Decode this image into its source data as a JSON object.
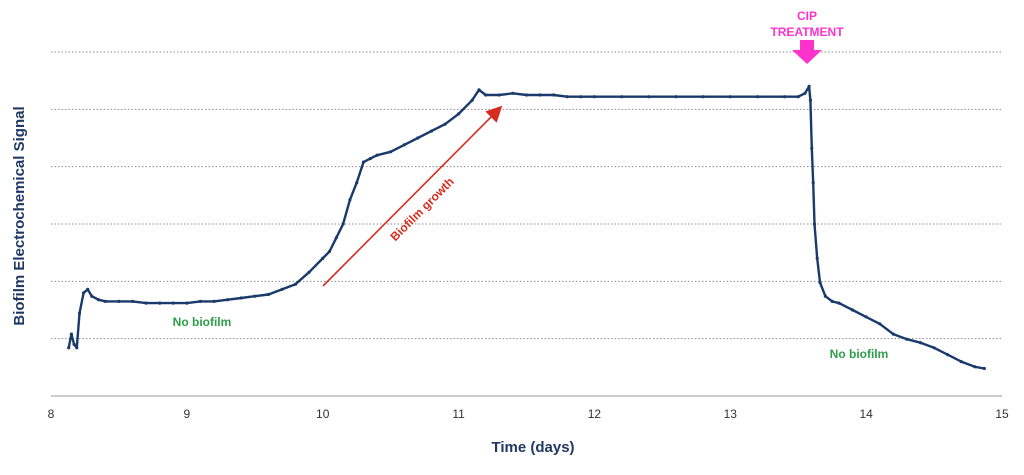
{
  "chart_data": {
    "type": "line",
    "title": "",
    "xlabel": "Time (days)",
    "ylabel": "Biofilm Electrochemical Signal",
    "xlim": [
      8,
      15
    ],
    "x_ticks": [
      "8",
      "9",
      "10",
      "11",
      "12",
      "13",
      "14",
      "15"
    ],
    "y_gridlines": 6,
    "y_ticks_labeled": false,
    "grid": "horizontal dotted",
    "legend": "none",
    "series": [
      {
        "color": "#1a3a6b",
        "points": [
          [
            8.13,
            0.14
          ],
          [
            8.15,
            0.18
          ],
          [
            8.17,
            0.15
          ],
          [
            8.19,
            0.14
          ],
          [
            8.21,
            0.24
          ],
          [
            8.24,
            0.3
          ],
          [
            8.27,
            0.31
          ],
          [
            8.3,
            0.29
          ],
          [
            8.35,
            0.28
          ],
          [
            8.4,
            0.275
          ],
          [
            8.5,
            0.275
          ],
          [
            8.6,
            0.275
          ],
          [
            8.7,
            0.27
          ],
          [
            8.8,
            0.27
          ],
          [
            8.9,
            0.27
          ],
          [
            9.0,
            0.27
          ],
          [
            9.1,
            0.275
          ],
          [
            9.2,
            0.275
          ],
          [
            9.3,
            0.28
          ],
          [
            9.4,
            0.285
          ],
          [
            9.5,
            0.29
          ],
          [
            9.6,
            0.295
          ],
          [
            9.7,
            0.31
          ],
          [
            9.8,
            0.325
          ],
          [
            9.9,
            0.36
          ],
          [
            10.0,
            0.4
          ],
          [
            10.05,
            0.42
          ],
          [
            10.1,
            0.46
          ],
          [
            10.15,
            0.5
          ],
          [
            10.2,
            0.57
          ],
          [
            10.25,
            0.62
          ],
          [
            10.3,
            0.68
          ],
          [
            10.35,
            0.69
          ],
          [
            10.4,
            0.7
          ],
          [
            10.5,
            0.71
          ],
          [
            10.6,
            0.73
          ],
          [
            10.7,
            0.75
          ],
          [
            10.8,
            0.77
          ],
          [
            10.9,
            0.79
          ],
          [
            11.0,
            0.82
          ],
          [
            11.1,
            0.86
          ],
          [
            11.15,
            0.89
          ],
          [
            11.2,
            0.875
          ],
          [
            11.3,
            0.875
          ],
          [
            11.4,
            0.88
          ],
          [
            11.5,
            0.875
          ],
          [
            11.6,
            0.875
          ],
          [
            11.7,
            0.875
          ],
          [
            11.8,
            0.87
          ],
          [
            11.9,
            0.87
          ],
          [
            12.0,
            0.87
          ],
          [
            12.2,
            0.87
          ],
          [
            12.4,
            0.87
          ],
          [
            12.6,
            0.87
          ],
          [
            12.8,
            0.87
          ],
          [
            13.0,
            0.87
          ],
          [
            13.2,
            0.87
          ],
          [
            13.4,
            0.87
          ],
          [
            13.5,
            0.87
          ],
          [
            13.55,
            0.88
          ],
          [
            13.58,
            0.9
          ],
          [
            13.59,
            0.86
          ],
          [
            13.6,
            0.72
          ],
          [
            13.61,
            0.62
          ],
          [
            13.62,
            0.5
          ],
          [
            13.64,
            0.4
          ],
          [
            13.66,
            0.33
          ],
          [
            13.7,
            0.29
          ],
          [
            13.75,
            0.275
          ],
          [
            13.8,
            0.27
          ],
          [
            13.9,
            0.25
          ],
          [
            14.0,
            0.23
          ],
          [
            14.1,
            0.21
          ],
          [
            14.2,
            0.18
          ],
          [
            14.3,
            0.165
          ],
          [
            14.4,
            0.155
          ],
          [
            14.5,
            0.14
          ],
          [
            14.6,
            0.12
          ],
          [
            14.7,
            0.1
          ],
          [
            14.8,
            0.085
          ],
          [
            14.87,
            0.08
          ]
        ]
      }
    ],
    "annotations": {
      "no_biofilm_left": "No biofilm",
      "biofilm_growth": "Biofilm growth",
      "cip_treatment_line1": "CIP",
      "cip_treatment_line2": "TREATMENT",
      "no_biofilm_right": "No biofilm"
    },
    "colors": {
      "series": "#1a3a6b",
      "growth_arrow": "#d62d20",
      "no_biofilm_text": "#2e9e49",
      "cip": "#ff33cc",
      "axis_title": "#1f3864"
    }
  }
}
